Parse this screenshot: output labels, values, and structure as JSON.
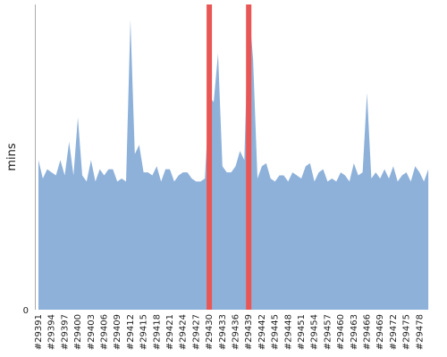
{
  "chart_data": {
    "type": "area",
    "ylabel": "mins",
    "yticks": [
      "0"
    ],
    "ylim": [
      0,
      100
    ],
    "x_labels": [
      "#29391",
      "#29394",
      "#29397",
      "#29400",
      "#29403",
      "#29406",
      "#29409",
      "#29412",
      "#29415",
      "#29418",
      "#29421",
      "#29424",
      "#29427",
      "#29430",
      "#29433",
      "#29436",
      "#29439",
      "#29442",
      "#29445",
      "#29448",
      "#29451",
      "#29454",
      "#29457",
      "#29460",
      "#29463",
      "#29466",
      "#29469",
      "#29472",
      "#29475",
      "#29478"
    ],
    "x_start": 29391,
    "series": [
      {
        "values": [
          49,
          43,
          46,
          45,
          44,
          49,
          44,
          55,
          44,
          63,
          44,
          42,
          49,
          42,
          46,
          44,
          46,
          46,
          42,
          43,
          42,
          95,
          51,
          54,
          45,
          45,
          44,
          47,
          42,
          46,
          46,
          42,
          44,
          45,
          45,
          43,
          42,
          42,
          43,
          70,
          68,
          84,
          47,
          45,
          45,
          47,
          52,
          49,
          100,
          82,
          43,
          47,
          48,
          43,
          42,
          44,
          44,
          42,
          45,
          44,
          43,
          47,
          48,
          42,
          45,
          46,
          42,
          43,
          42,
          45,
          44,
          42,
          48,
          44,
          45,
          71,
          43,
          45,
          43,
          46,
          43,
          47,
          42,
          44,
          45,
          42,
          47,
          45,
          42,
          46
        ]
      }
    ],
    "highlights": [
      "#29430",
      "#29439"
    ],
    "colors": {
      "area": "#8eb1da",
      "highlight": "#e85656",
      "axis": "#aaaaaa"
    },
    "grid": false
  }
}
